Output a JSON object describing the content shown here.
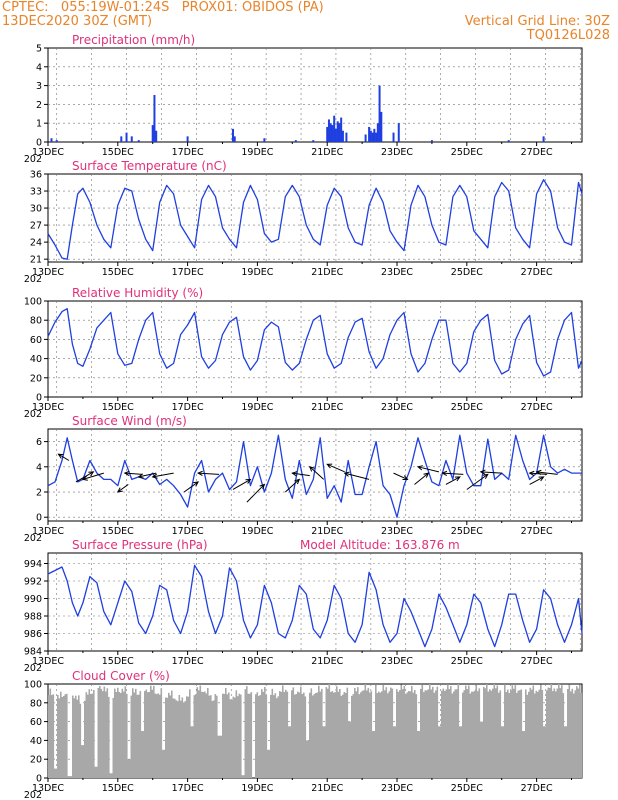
{
  "header": {
    "line1": "CPTEC:   055:19W-01:24S   PROX01: OBIDOS (PA)",
    "line2_left": "13DEC2020 30Z (GMT)",
    "line2_right": "Vertical Grid Line: 30Z",
    "line3_right": "TQ0126L028"
  },
  "x_tick_labels": [
    "13DEC",
    "15DEC",
    "17DEC",
    "19DEC",
    "21DEC",
    "23DEC",
    "25DEC",
    "27DEC"
  ],
  "x_sub_label": "202",
  "colors": {
    "line": "#1f3fe0",
    "bar": "#1f3fe0",
    "cloud": "#a8a8a8",
    "title": "#e0307a",
    "header": "#e8842a"
  },
  "chart_data": [
    {
      "type": "bar",
      "title": "Precipitation (mm/h)",
      "ylim": [
        0,
        5
      ],
      "yticks": [
        0,
        1,
        2,
        3,
        4,
        5
      ],
      "x_range_days": [
        13,
        28.3
      ],
      "bars": [
        [
          13.1,
          0.2
        ],
        [
          13.25,
          0.1
        ],
        [
          15.1,
          0.3
        ],
        [
          15.25,
          0.5
        ],
        [
          15.4,
          0.3
        ],
        [
          15.6,
          0.1
        ],
        [
          16.0,
          0.9
        ],
        [
          16.05,
          2.5
        ],
        [
          16.1,
          0.6
        ],
        [
          17.0,
          0.3
        ],
        [
          18.3,
          0.7
        ],
        [
          18.35,
          0.3
        ],
        [
          19.2,
          0.2
        ],
        [
          20.1,
          0.1
        ],
        [
          20.6,
          0.1
        ],
        [
          21.0,
          0.8
        ],
        [
          21.05,
          1.2
        ],
        [
          21.1,
          1.0
        ],
        [
          21.15,
          0.9
        ],
        [
          21.2,
          1.4
        ],
        [
          21.25,
          0.7
        ],
        [
          21.3,
          1.1
        ],
        [
          21.35,
          1.0
        ],
        [
          21.4,
          1.3
        ],
        [
          21.45,
          0.6
        ],
        [
          21.55,
          0.5
        ],
        [
          22.1,
          0.4
        ],
        [
          22.2,
          0.8
        ],
        [
          22.25,
          0.6
        ],
        [
          22.3,
          0.5
        ],
        [
          22.35,
          0.7
        ],
        [
          22.4,
          0.5
        ],
        [
          22.45,
          1.0
        ],
        [
          22.5,
          3.0
        ],
        [
          22.55,
          1.6
        ],
        [
          22.9,
          0.5
        ],
        [
          23.05,
          1.0
        ],
        [
          24.0,
          0.1
        ],
        [
          26.2,
          0.1
        ],
        [
          27.2,
          0.3
        ]
      ]
    },
    {
      "type": "line",
      "title": "Surface Temperature (nC)",
      "ylim": [
        20.5,
        36
      ],
      "yticks": [
        21,
        24,
        27,
        30,
        33,
        36
      ],
      "x": [
        13.0,
        13.2,
        13.4,
        13.55,
        13.7,
        13.85,
        14.0,
        14.2,
        14.4,
        14.6,
        14.8,
        15.0,
        15.2,
        15.4,
        15.6,
        15.8,
        16.0,
        16.2,
        16.4,
        16.6,
        16.8,
        17.0,
        17.2,
        17.4,
        17.6,
        17.8,
        18.0,
        18.2,
        18.4,
        18.6,
        18.8,
        19.0,
        19.2,
        19.4,
        19.6,
        19.8,
        20.0,
        20.2,
        20.4,
        20.6,
        20.8,
        21.0,
        21.2,
        21.4,
        21.6,
        21.8,
        22.0,
        22.2,
        22.4,
        22.6,
        22.8,
        23.0,
        23.2,
        23.4,
        23.6,
        23.8,
        24.0,
        24.2,
        24.4,
        24.6,
        24.8,
        25.0,
        25.2,
        25.4,
        25.6,
        25.8,
        26.0,
        26.2,
        26.4,
        26.6,
        26.8,
        27.0,
        27.2,
        27.4,
        27.6,
        27.8,
        28.0,
        28.2,
        28.3
      ],
      "values": [
        25.5,
        23.5,
        21.2,
        21.0,
        27.0,
        32.5,
        33.5,
        31.0,
        27.0,
        24.5,
        23.0,
        30.5,
        33.5,
        33.0,
        28.0,
        24.5,
        22.5,
        31.0,
        34.0,
        32.5,
        27.0,
        25.0,
        23.0,
        31.5,
        34.0,
        32.0,
        26.5,
        24.5,
        23.0,
        31.0,
        34.0,
        31.5,
        25.5,
        24.0,
        24.5,
        32.0,
        34.0,
        32.0,
        27.0,
        24.5,
        23.5,
        30.5,
        33.5,
        32.0,
        26.5,
        24.0,
        23.5,
        30.5,
        33.5,
        31.0,
        26.0,
        24.0,
        22.5,
        30.5,
        34.0,
        32.0,
        27.0,
        24.0,
        23.5,
        32.0,
        34.0,
        32.0,
        26.0,
        24.5,
        23.0,
        32.0,
        34.5,
        33.0,
        26.5,
        24.5,
        23.0,
        32.5,
        35.0,
        33.0,
        26.5,
        24.0,
        23.5,
        34.5,
        32.5
      ]
    },
    {
      "type": "line",
      "title": "Relative Humidity (%)",
      "ylim": [
        0,
        100
      ],
      "yticks": [
        0,
        20,
        40,
        60,
        80,
        100
      ],
      "x": [
        13.0,
        13.2,
        13.4,
        13.55,
        13.7,
        13.85,
        14.0,
        14.2,
        14.4,
        14.6,
        14.8,
        15.0,
        15.2,
        15.4,
        15.6,
        15.8,
        16.0,
        16.2,
        16.4,
        16.6,
        16.8,
        17.0,
        17.2,
        17.4,
        17.6,
        17.8,
        18.0,
        18.2,
        18.4,
        18.6,
        18.8,
        19.0,
        19.2,
        19.4,
        19.6,
        19.8,
        20.0,
        20.2,
        20.4,
        20.6,
        20.8,
        21.0,
        21.2,
        21.4,
        21.6,
        21.8,
        22.0,
        22.2,
        22.4,
        22.6,
        22.8,
        23.0,
        23.2,
        23.4,
        23.6,
        23.8,
        24.0,
        24.2,
        24.4,
        24.6,
        24.8,
        25.0,
        25.2,
        25.4,
        25.6,
        25.8,
        26.0,
        26.2,
        26.4,
        26.6,
        26.8,
        27.0,
        27.2,
        27.4,
        27.6,
        27.8,
        28.0,
        28.2,
        28.3
      ],
      "values": [
        63.0,
        78.0,
        89.0,
        92.0,
        55.0,
        35.0,
        32.0,
        50.0,
        72.0,
        80.0,
        88.0,
        45.0,
        33.0,
        35.0,
        60.0,
        80.0,
        88.0,
        45.0,
        30.0,
        35.0,
        65.0,
        75.0,
        88.0,
        42.0,
        30.0,
        38.0,
        65.0,
        78.0,
        83.0,
        42.0,
        28.0,
        38.0,
        70.0,
        78.0,
        73.0,
        36.0,
        28.0,
        35.0,
        60.0,
        80.0,
        85.0,
        45.0,
        30.0,
        35.0,
        62.0,
        78.0,
        82.0,
        47.0,
        30.0,
        40.0,
        65.0,
        80.0,
        88.0,
        45.0,
        26.0,
        35.0,
        60.0,
        80.0,
        80.0,
        35.0,
        26.0,
        35.0,
        68.0,
        80.0,
        86.0,
        38.0,
        24.0,
        28.0,
        60.0,
        76.0,
        85.0,
        36.0,
        22.0,
        26.0,
        60.0,
        80.0,
        88.0,
        30.0,
        38.0
      ]
    },
    {
      "type": "line",
      "title": "Surface Wind (m/s)",
      "ylim": [
        -0.3,
        7
      ],
      "yticks": [
        0,
        2,
        4,
        6
      ],
      "x": [
        13.0,
        13.2,
        13.4,
        13.55,
        13.7,
        13.85,
        14.0,
        14.2,
        14.4,
        14.6,
        14.8,
        15.0,
        15.2,
        15.4,
        15.6,
        15.8,
        16.0,
        16.2,
        16.4,
        16.6,
        16.8,
        17.0,
        17.2,
        17.4,
        17.6,
        17.8,
        18.0,
        18.2,
        18.4,
        18.6,
        18.8,
        19.0,
        19.2,
        19.4,
        19.6,
        19.8,
        20.0,
        20.2,
        20.4,
        20.6,
        20.8,
        21.0,
        21.2,
        21.4,
        21.6,
        21.8,
        22.0,
        22.2,
        22.4,
        22.6,
        22.8,
        23.0,
        23.2,
        23.4,
        23.6,
        23.8,
        24.0,
        24.2,
        24.4,
        24.6,
        24.8,
        25.0,
        25.2,
        25.4,
        25.6,
        25.8,
        26.0,
        26.2,
        26.4,
        26.6,
        26.8,
        27.0,
        27.2,
        27.4,
        27.6,
        27.8,
        28.0,
        28.2,
        28.3
      ],
      "values": [
        2.5,
        2.8,
        4.5,
        6.3,
        4.5,
        2.8,
        3.0,
        4.5,
        3.5,
        3.0,
        3.0,
        2.5,
        4.5,
        3.0,
        3.2,
        3.0,
        3.5,
        2.6,
        3.0,
        2.5,
        1.8,
        0.8,
        3.5,
        4.5,
        2.0,
        3.0,
        3.5,
        2.2,
        2.8,
        6.0,
        2.5,
        4.0,
        2.0,
        3.5,
        6.5,
        3.0,
        1.5,
        4.5,
        1.8,
        3.0,
        6.3,
        1.5,
        2.5,
        1.2,
        4.5,
        1.8,
        1.8,
        4.0,
        6.0,
        2.5,
        1.8,
        0.0,
        2.5,
        4.0,
        6.3,
        4.5,
        2.8,
        2.5,
        4.5,
        3.0,
        6.5,
        3.5,
        2.5,
        2.5,
        6.2,
        3.0,
        3.5,
        3.0,
        6.5,
        4.5,
        3.0,
        3.5,
        6.5,
        4.0,
        3.5,
        3.8,
        3.5,
        3.5,
        3.5
      ],
      "vectors": [
        [
          13.6,
          4.5,
          13.3,
          5.0
        ],
        [
          13.8,
          2.8,
          14.3,
          3.6
        ],
        [
          14.6,
          3.5,
          14.0,
          3.0
        ],
        [
          15.3,
          2.6,
          15.0,
          2.0
        ],
        [
          15.7,
          3.4,
          15.2,
          3.5
        ],
        [
          16.1,
          3.5,
          15.6,
          3.2
        ],
        [
          16.6,
          3.5,
          16.0,
          3.2
        ],
        [
          16.9,
          2.0,
          17.3,
          2.8
        ],
        [
          17.9,
          3.4,
          17.3,
          3.5
        ],
        [
          18.3,
          2.2,
          18.8,
          3.0
        ],
        [
          18.7,
          1.2,
          19.2,
          2.6
        ],
        [
          19.8,
          2.0,
          20.2,
          3.0
        ],
        [
          20.5,
          3.3,
          20.0,
          3.5
        ],
        [
          20.9,
          3.0,
          20.5,
          4.0
        ],
        [
          21.5,
          3.6,
          21.0,
          4.2
        ],
        [
          22.2,
          3.0,
          21.5,
          3.5
        ],
        [
          22.9,
          3.5,
          23.3,
          3.0
        ],
        [
          23.5,
          2.6,
          23.9,
          3.5
        ],
        [
          24.2,
          3.6,
          23.6,
          4.0
        ],
        [
          24.4,
          2.6,
          24.8,
          3.2
        ],
        [
          24.9,
          3.4,
          24.3,
          3.5
        ],
        [
          25.0,
          2.2,
          25.6,
          3.4
        ],
        [
          26.0,
          3.5,
          25.4,
          3.6
        ],
        [
          26.8,
          2.6,
          27.2,
          3.2
        ],
        [
          27.3,
          3.4,
          26.8,
          3.5
        ],
        [
          27.6,
          3.4,
          27.0,
          3.6
        ]
      ]
    },
    {
      "type": "line",
      "title": "Surface Pressure (hPa)",
      "annotation": "Model Altitude: 163.876  m",
      "ylim": [
        984,
        995.2
      ],
      "yticks": [
        984,
        986,
        988,
        990,
        992,
        994
      ],
      "x": [
        13.0,
        13.2,
        13.4,
        13.55,
        13.7,
        13.85,
        14.0,
        14.2,
        14.4,
        14.6,
        14.8,
        15.0,
        15.2,
        15.4,
        15.6,
        15.8,
        16.0,
        16.2,
        16.4,
        16.6,
        16.8,
        17.0,
        17.2,
        17.4,
        17.6,
        17.8,
        18.0,
        18.2,
        18.4,
        18.6,
        18.8,
        19.0,
        19.2,
        19.4,
        19.6,
        19.8,
        20.0,
        20.2,
        20.4,
        20.6,
        20.8,
        21.0,
        21.2,
        21.4,
        21.6,
        21.8,
        22.0,
        22.2,
        22.4,
        22.6,
        22.8,
        23.0,
        23.2,
        23.4,
        23.6,
        23.8,
        24.0,
        24.2,
        24.4,
        24.6,
        24.8,
        25.0,
        25.2,
        25.4,
        25.6,
        25.8,
        26.0,
        26.2,
        26.4,
        26.6,
        26.8,
        27.0,
        27.2,
        27.4,
        27.6,
        27.8,
        28.0,
        28.2,
        28.3
      ],
      "values": [
        992.8,
        993.2,
        993.6,
        992.0,
        989.5,
        988.0,
        989.5,
        992.5,
        991.8,
        988.5,
        987.0,
        989.5,
        992.0,
        990.8,
        987.2,
        986.0,
        988.0,
        991.5,
        991.0,
        987.5,
        986.0,
        988.5,
        993.8,
        992.5,
        988.5,
        986.0,
        988.0,
        993.5,
        992.0,
        987.5,
        985.5,
        987.0,
        991.5,
        989.5,
        986.0,
        985.5,
        987.5,
        991.5,
        990.5,
        986.5,
        985.5,
        987.5,
        991.5,
        990.0,
        986.0,
        985.0,
        987.0,
        993.0,
        991.0,
        987.0,
        985.0,
        986.0,
        990.0,
        988.5,
        986.5,
        984.5,
        986.5,
        990.5,
        989.0,
        987.0,
        985.0,
        987.0,
        990.5,
        989.5,
        986.5,
        984.5,
        987.0,
        990.5,
        990.5,
        987.5,
        985.0,
        986.5,
        991.0,
        990.0,
        987.0,
        985.0,
        987.0,
        990.0,
        986.0
      ]
    },
    {
      "type": "area",
      "title": "Cloud Cover (%)",
      "ylim": [
        0,
        100
      ],
      "yticks": [
        0,
        20,
        40,
        60,
        80,
        100
      ],
      "x_range_days": [
        13,
        28.3
      ],
      "profile": [
        [
          13.0,
          90
        ],
        [
          13.3,
          85
        ],
        [
          13.6,
          95
        ],
        [
          13.9,
          80
        ],
        [
          14.2,
          92
        ],
        [
          14.5,
          98
        ],
        [
          14.8,
          85
        ],
        [
          15.0,
          95
        ],
        [
          15.3,
          90
        ],
        [
          15.6,
          92
        ],
        [
          15.9,
          95
        ],
        [
          16.2,
          90
        ],
        [
          16.5,
          88
        ],
        [
          16.8,
          82
        ],
        [
          17.1,
          90
        ],
        [
          17.4,
          95
        ],
        [
          17.7,
          85
        ],
        [
          18.0,
          92
        ],
        [
          18.3,
          85
        ],
        [
          18.6,
          95
        ],
        [
          18.9,
          90
        ],
        [
          19.2,
          92
        ],
        [
          19.5,
          88
        ],
        [
          19.8,
          95
        ],
        [
          20.1,
          92
        ],
        [
          20.4,
          90
        ],
        [
          20.7,
          92
        ],
        [
          21.0,
          95
        ],
        [
          21.3,
          92
        ],
        [
          21.6,
          90
        ],
        [
          21.9,
          93
        ],
        [
          22.2,
          95
        ],
        [
          22.5,
          93
        ],
        [
          22.8,
          95
        ],
        [
          23.1,
          95
        ],
        [
          23.4,
          92
        ],
        [
          23.7,
          95
        ],
        [
          24.0,
          95
        ],
        [
          24.3,
          96
        ],
        [
          24.6,
          94
        ],
        [
          24.9,
          95
        ],
        [
          25.2,
          93
        ],
        [
          25.5,
          95
        ],
        [
          25.8,
          96
        ],
        [
          26.1,
          94
        ],
        [
          26.4,
          95
        ],
        [
          26.7,
          93
        ],
        [
          27.0,
          94
        ],
        [
          27.3,
          95
        ],
        [
          27.6,
          96
        ],
        [
          27.9,
          94
        ],
        [
          28.3,
          95
        ]
      ],
      "dips": [
        [
          13.2,
          10
        ],
        [
          13.6,
          2
        ],
        [
          13.95,
          35
        ],
        [
          14.35,
          12
        ],
        [
          14.8,
          5
        ],
        [
          15.3,
          20
        ],
        [
          15.7,
          50
        ],
        [
          16.3,
          30
        ],
        [
          17.1,
          55
        ],
        [
          17.9,
          45
        ],
        [
          18.55,
          3
        ],
        [
          18.85,
          0
        ],
        [
          19.3,
          30
        ],
        [
          19.9,
          55
        ],
        [
          20.4,
          40
        ],
        [
          20.9,
          55
        ],
        [
          21.6,
          60
        ],
        [
          22.3,
          50
        ],
        [
          22.9,
          55
        ],
        [
          23.6,
          50
        ],
        [
          24.2,
          55
        ],
        [
          24.8,
          55
        ],
        [
          25.4,
          60
        ],
        [
          26.0,
          55
        ],
        [
          26.6,
          50
        ],
        [
          27.2,
          55
        ],
        [
          27.8,
          55
        ]
      ]
    }
  ]
}
